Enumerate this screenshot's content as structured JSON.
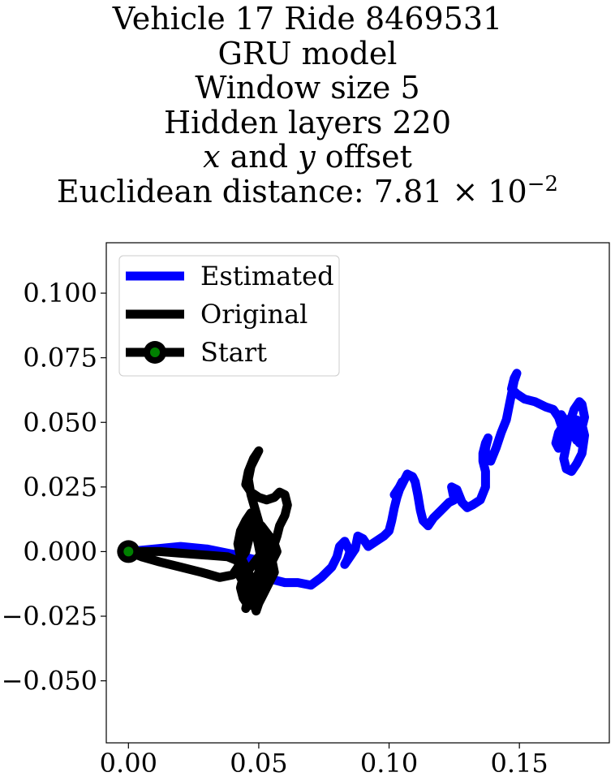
{
  "chart_data": {
    "type": "line",
    "title_lines": {
      "line1": "Vehicle 17 Ride 8469531",
      "line2": "GRU model",
      "line3": "Window size 5",
      "line4": "Hidden layers 220",
      "line5_var_x": "x",
      "line5_and": " and ",
      "line5_var_y": "y",
      "line5_rest": " offset",
      "line6_prefix": "Euclidean distance: 7.81 × 10",
      "line6_exponent": "−2"
    },
    "xlabel": "",
    "ylabel": "",
    "xlim": [
      -0.0085,
      0.1845
    ],
    "ylim": [
      -0.074,
      0.1195
    ],
    "xticks": [
      0.0,
      0.05,
      0.1,
      0.15
    ],
    "xtick_labels": [
      "0.00",
      "0.05",
      "0.10",
      "0.15"
    ],
    "yticks": [
      -0.05,
      -0.025,
      0.0,
      0.025,
      0.05,
      0.075,
      0.1
    ],
    "ytick_labels": [
      "−0.050",
      "−0.025",
      "0.000",
      "0.025",
      "0.050",
      "0.075",
      "0.100"
    ],
    "grid": false,
    "legend_position": "upper-left",
    "series": [
      {
        "name": "Estimated",
        "color": "#0000ff",
        "x": [
          0.0,
          0.01,
          0.02,
          0.03,
          0.04,
          0.048,
          0.052,
          0.056,
          0.06,
          0.065,
          0.07,
          0.074,
          0.078,
          0.08,
          0.081,
          0.083,
          0.084,
          0.085,
          0.084,
          0.083,
          0.085,
          0.087,
          0.088,
          0.09,
          0.092,
          0.095,
          0.098,
          0.1,
          0.101,
          0.102,
          0.103,
          0.104,
          0.105,
          0.104,
          0.102,
          0.104,
          0.106,
          0.107,
          0.109,
          0.11,
          0.111,
          0.112,
          0.113,
          0.114,
          0.115,
          0.117,
          0.12,
          0.123,
          0.125,
          0.124,
          0.126,
          0.128,
          0.13,
          0.132,
          0.135,
          0.137,
          0.137,
          0.136,
          0.136,
          0.137,
          0.138,
          0.137,
          0.137,
          0.139,
          0.141,
          0.143,
          0.145,
          0.146,
          0.147,
          0.148,
          0.149,
          0.148,
          0.147,
          0.149,
          0.152,
          0.156,
          0.16,
          0.163,
          0.165,
          0.166,
          0.165,
          0.166,
          0.168,
          0.169,
          0.168,
          0.167,
          0.168,
          0.17,
          0.172,
          0.174,
          0.175,
          0.174,
          0.172,
          0.171,
          0.172,
          0.173,
          0.172,
          0.17,
          0.169,
          0.168,
          0.167,
          0.166,
          0.165,
          0.164,
          0.165,
          0.167,
          0.17,
          0.171,
          0.173,
          0.174,
          0.175,
          0.174,
          0.173,
          0.172,
          0.171,
          0.171
        ],
        "y": [
          0.0,
          0.001,
          0.002,
          0.001,
          -0.001,
          -0.003,
          -0.007,
          -0.011,
          -0.012,
          -0.012,
          -0.013,
          -0.01,
          -0.006,
          -0.002,
          0.002,
          0.004,
          0.002,
          0.0,
          -0.003,
          -0.005,
          -0.002,
          0.001,
          0.006,
          0.005,
          0.002,
          0.004,
          0.006,
          0.008,
          0.012,
          0.017,
          0.021,
          0.024,
          0.027,
          0.025,
          0.022,
          0.024,
          0.028,
          0.03,
          0.029,
          0.027,
          0.022,
          0.016,
          0.012,
          0.011,
          0.01,
          0.013,
          0.016,
          0.019,
          0.02,
          0.025,
          0.024,
          0.019,
          0.017,
          0.018,
          0.02,
          0.025,
          0.031,
          0.035,
          0.038,
          0.042,
          0.044,
          0.04,
          0.036,
          0.035,
          0.04,
          0.046,
          0.051,
          0.056,
          0.061,
          0.066,
          0.069,
          0.067,
          0.063,
          0.061,
          0.059,
          0.058,
          0.056,
          0.055,
          0.052,
          0.049,
          0.052,
          0.053,
          0.05,
          0.046,
          0.041,
          0.036,
          0.032,
          0.031,
          0.034,
          0.038,
          0.045,
          0.049,
          0.051,
          0.047,
          0.044,
          0.042,
          0.045,
          0.048,
          0.05,
          0.049,
          0.046,
          0.043,
          0.04,
          0.042,
          0.046,
          0.049,
          0.052,
          0.055,
          0.058,
          0.057,
          0.052,
          0.048,
          0.045,
          0.043,
          0.045,
          0.047
        ]
      },
      {
        "name": "Original",
        "color": "#000000",
        "x": [
          0.0,
          0.012,
          0.025,
          0.038,
          0.043,
          0.045,
          0.046,
          0.047,
          0.048,
          0.05,
          0.052,
          0.054,
          0.056,
          0.055,
          0.053,
          0.051,
          0.049,
          0.047,
          0.046,
          0.047,
          0.049,
          0.05,
          0.048,
          0.046,
          0.045,
          0.047,
          0.05,
          0.053,
          0.056,
          0.058,
          0.06,
          0.061,
          0.06,
          0.058,
          0.057,
          0.056,
          0.057,
          0.055,
          0.052,
          0.05,
          0.048,
          0.046,
          0.045,
          0.046,
          0.048,
          0.05,
          0.051,
          0.05,
          0.049,
          0.048,
          0.047,
          0.045,
          0.043,
          0.042,
          0.043,
          0.045,
          0.047,
          0.049,
          0.05,
          0.051,
          0.053,
          0.055,
          0.054,
          0.051,
          0.048,
          0.046,
          0.045,
          0.044,
          0.043,
          0.042,
          0.044,
          0.046,
          0.048,
          0.049,
          0.05,
          0.052,
          0.054,
          0.055,
          0.053,
          0.05,
          0.047,
          0.044,
          0.043,
          0.044,
          0.046,
          0.048,
          0.05,
          0.052,
          0.053,
          0.054,
          0.055,
          0.054,
          0.052,
          0.05,
          0.048,
          0.047,
          0.046,
          0.045,
          0.043,
          0.042,
          0.04,
          0.035,
          0.028,
          0.02,
          0.012,
          0.005,
          0.0
        ],
        "y": [
          0.0,
          0.0,
          -0.001,
          -0.002,
          -0.004,
          -0.007,
          -0.011,
          -0.015,
          -0.019,
          -0.02,
          -0.016,
          -0.012,
          -0.008,
          -0.003,
          0.002,
          0.008,
          0.015,
          0.022,
          0.028,
          0.033,
          0.037,
          0.039,
          0.036,
          0.031,
          0.026,
          0.023,
          0.021,
          0.02,
          0.021,
          0.023,
          0.022,
          0.018,
          0.014,
          0.01,
          0.006,
          0.003,
          0.0,
          -0.004,
          -0.008,
          -0.012,
          -0.016,
          -0.02,
          -0.022,
          -0.018,
          -0.013,
          -0.008,
          -0.003,
          0.002,
          0.007,
          0.012,
          0.015,
          0.012,
          0.008,
          0.003,
          -0.002,
          -0.006,
          -0.01,
          -0.013,
          -0.01,
          -0.006,
          -0.002,
          0.002,
          0.006,
          0.01,
          0.012,
          0.008,
          0.004,
          0.0,
          -0.004,
          -0.008,
          -0.012,
          -0.016,
          -0.02,
          -0.023,
          -0.02,
          -0.016,
          -0.012,
          -0.008,
          -0.004,
          -0.002,
          -0.006,
          -0.01,
          -0.014,
          -0.018,
          -0.021,
          -0.019,
          -0.015,
          -0.011,
          -0.007,
          -0.003,
          0.0,
          0.003,
          0.006,
          0.009,
          0.011,
          0.008,
          0.004,
          0.0,
          -0.003,
          -0.006,
          -0.009,
          -0.01,
          -0.008,
          -0.006,
          -0.004,
          -0.002,
          0.0
        ]
      },
      {
        "name": "Start",
        "color": "#000000",
        "marker_face_color": "#008000",
        "x": [
          0.0
        ],
        "y": [
          0.0
        ]
      }
    ]
  }
}
